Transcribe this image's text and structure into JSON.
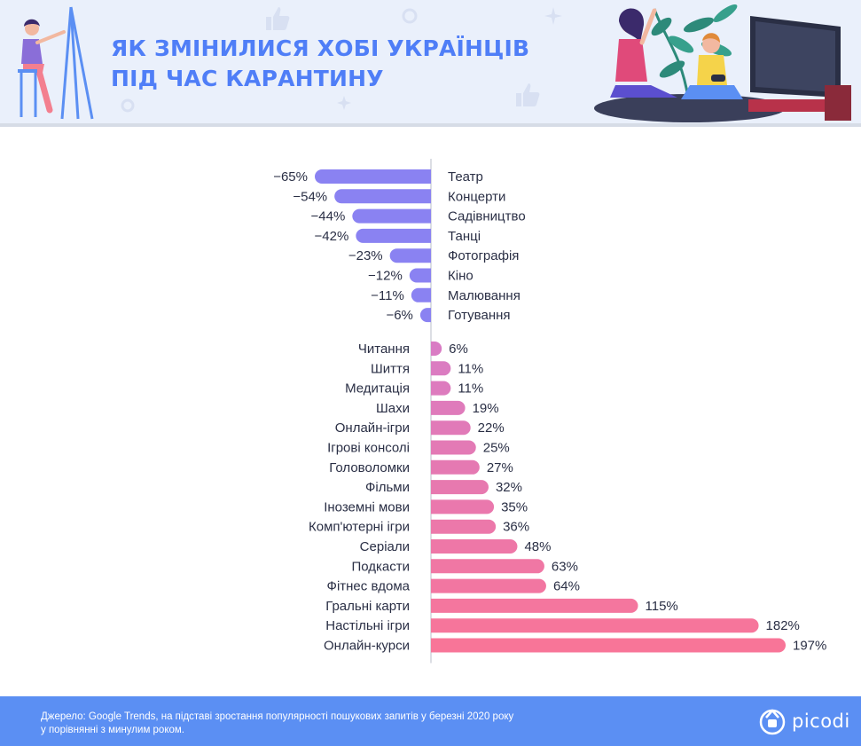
{
  "header": {
    "title_line1": "ЯК ЗМІНИЛИСЯ ХОБІ УКРАЇНЦІВ",
    "title_line2": "ПІД ЧАС КАРАНТИНУ"
  },
  "colors": {
    "header_bg": "#eaf0fb",
    "title": "#4f7ef7",
    "negative_bar": "#8a82f2",
    "positive_bar_start": "#d97cc4",
    "positive_bar_end": "#f87598",
    "axis": "#b8bcc8",
    "footer_bg": "#5b8ff3"
  },
  "chart_data": {
    "type": "bar",
    "orientation": "horizontal",
    "unit": "%",
    "negative": {
      "categories": [
        "Театр",
        "Концерти",
        "Садівництво",
        "Танці",
        "Фотографія",
        "Кіно",
        "Малювання",
        "Готування"
      ],
      "values": [
        -65,
        -54,
        -44,
        -42,
        -23,
        -12,
        -11,
        -6
      ],
      "labels": [
        "−65%",
        "−54%",
        "−44%",
        "−42%",
        "−23%",
        "−12%",
        "−11%",
        "−6%"
      ]
    },
    "positive": {
      "categories": [
        "Читання",
        "Шиття",
        "Медитація",
        "Шахи",
        "Онлайн-ігри",
        "Ігрові консолі",
        "Головоломки",
        "Фільми",
        "Іноземні мови",
        "Комп'ютерні ігри",
        "Серіали",
        "Подкасти",
        "Фітнес вдома",
        "Гральні карти",
        "Настільні ігри",
        "Онлайн-курси"
      ],
      "values": [
        6,
        11,
        11,
        19,
        22,
        25,
        27,
        32,
        35,
        36,
        48,
        63,
        64,
        115,
        182,
        197
      ],
      "labels": [
        "6%",
        "11%",
        "11%",
        "19%",
        "22%",
        "25%",
        "27%",
        "32%",
        "35%",
        "36%",
        "48%",
        "63%",
        "64%",
        "115%",
        "182%",
        "197%"
      ]
    }
  },
  "footer": {
    "source_line1": "Джерело: Google Trends, на підставі зростання популярності пошукових запитів у березні 2020 року",
    "source_line2": "у порівнянні з минулим роком.",
    "logo": "picodi"
  },
  "icons": [
    "artist-illustration",
    "gamers-illustration",
    "plant-illustration",
    "tv-illustration",
    "thumbs-up-icon",
    "picodi-logo-icon"
  ]
}
